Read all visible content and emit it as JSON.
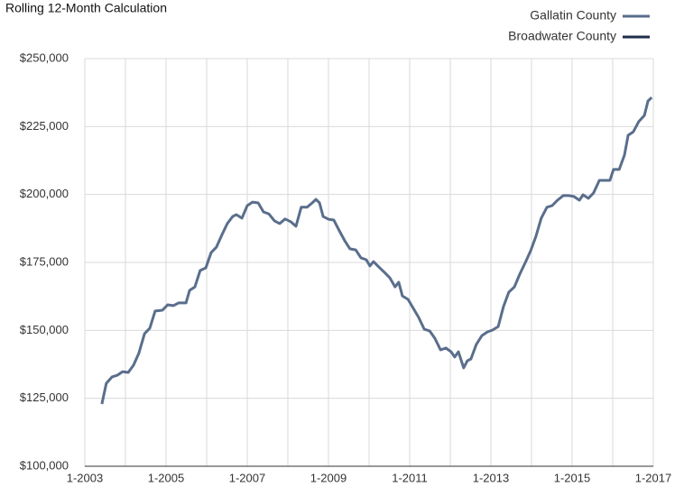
{
  "chart_data": {
    "type": "line",
    "title": "Rolling 12-Month Calculation",
    "series": [
      {
        "name": "Gallatin County",
        "color": "#5a6e8c",
        "x": [
          2003.42,
          2003.53,
          2003.67,
          2003.8,
          2003.93,
          2004.07,
          2004.2,
          2004.33,
          2004.47,
          2004.6,
          2004.73,
          2004.91,
          2005.04,
          2005.18,
          2005.31,
          2005.49,
          2005.58,
          2005.71,
          2005.84,
          2005.98,
          2006.11,
          2006.24,
          2006.38,
          2006.51,
          2006.64,
          2006.73,
          2006.87,
          2007.0,
          2007.13,
          2007.27,
          2007.4,
          2007.53,
          2007.67,
          2007.8,
          2007.93,
          2008.07,
          2008.2,
          2008.33,
          2008.47,
          2008.6,
          2008.69,
          2008.78,
          2008.87,
          2009.0,
          2009.13,
          2009.27,
          2009.4,
          2009.53,
          2009.67,
          2009.8,
          2009.93,
          2010.02,
          2010.11,
          2010.24,
          2010.38,
          2010.51,
          2010.64,
          2010.73,
          2010.82,
          2010.96,
          2011.09,
          2011.22,
          2011.36,
          2011.49,
          2011.62,
          2011.76,
          2011.89,
          2012.02,
          2012.11,
          2012.2,
          2012.33,
          2012.42,
          2012.51,
          2012.64,
          2012.78,
          2012.91,
          2013.04,
          2013.18,
          2013.31,
          2013.44,
          2013.58,
          2013.71,
          2013.84,
          2013.98,
          2014.11,
          2014.24,
          2014.38,
          2014.51,
          2014.64,
          2014.78,
          2014.91,
          2015.04,
          2015.18,
          2015.27,
          2015.4,
          2015.53,
          2015.67,
          2015.8,
          2015.93,
          2016.02,
          2016.16,
          2016.29,
          2016.38,
          2016.51,
          2016.64,
          2016.78,
          2016.87,
          2016.96
        ],
        "values": [
          122900,
          130500,
          132900,
          133500,
          134800,
          134500,
          137200,
          141500,
          148800,
          150800,
          157100,
          157400,
          159400,
          159100,
          160100,
          160100,
          164700,
          166000,
          172000,
          173000,
          178600,
          180600,
          185300,
          189300,
          191900,
          192600,
          191300,
          195900,
          197200,
          196900,
          193600,
          192900,
          190300,
          189300,
          191000,
          190000,
          188300,
          195300,
          195300,
          196900,
          198200,
          196900,
          191900,
          190900,
          190600,
          186600,
          183000,
          180000,
          179600,
          176700,
          176000,
          173700,
          175300,
          173300,
          171300,
          169400,
          166000,
          167700,
          162700,
          161400,
          158100,
          154800,
          150400,
          149800,
          147100,
          142800,
          143500,
          142100,
          140200,
          142100,
          136200,
          138800,
          139500,
          144800,
          148100,
          149400,
          150100,
          151400,
          158700,
          164000,
          166000,
          170700,
          174700,
          179300,
          184600,
          191300,
          195300,
          195900,
          197900,
          199600,
          199600,
          199300,
          197900,
          199900,
          198600,
          200600,
          205200,
          205200,
          205200,
          209200,
          209200,
          214500,
          221800,
          223100,
          226800,
          229100,
          234400,
          235700
        ]
      },
      {
        "name": "Broadwater County",
        "color": "#1f2d4a"
      }
    ],
    "xlim": [
      2003,
      2017
    ],
    "xticks": [
      {
        "value": 2003,
        "label": "1-2003"
      },
      {
        "value": 2005,
        "label": "1-2005"
      },
      {
        "value": 2007,
        "label": "1-2007"
      },
      {
        "value": 2009,
        "label": "1-2009"
      },
      {
        "value": 2011,
        "label": "1-2011"
      },
      {
        "value": 2013,
        "label": "1-2013"
      },
      {
        "value": 2015,
        "label": "1-2015"
      },
      {
        "value": 2017,
        "label": "1-2017"
      }
    ],
    "ylim": [
      100000,
      250000
    ],
    "yticks": [
      {
        "value": 100000,
        "label": "$100,000"
      },
      {
        "value": 125000,
        "label": "$125,000"
      },
      {
        "value": 150000,
        "label": "$150,000"
      },
      {
        "value": 175000,
        "label": "$175,000"
      },
      {
        "value": 200000,
        "label": "$200,000"
      },
      {
        "value": 225000,
        "label": "$225,000"
      },
      {
        "value": 250000,
        "label": "$250,000"
      }
    ],
    "grid": true,
    "legend": "top-right"
  }
}
